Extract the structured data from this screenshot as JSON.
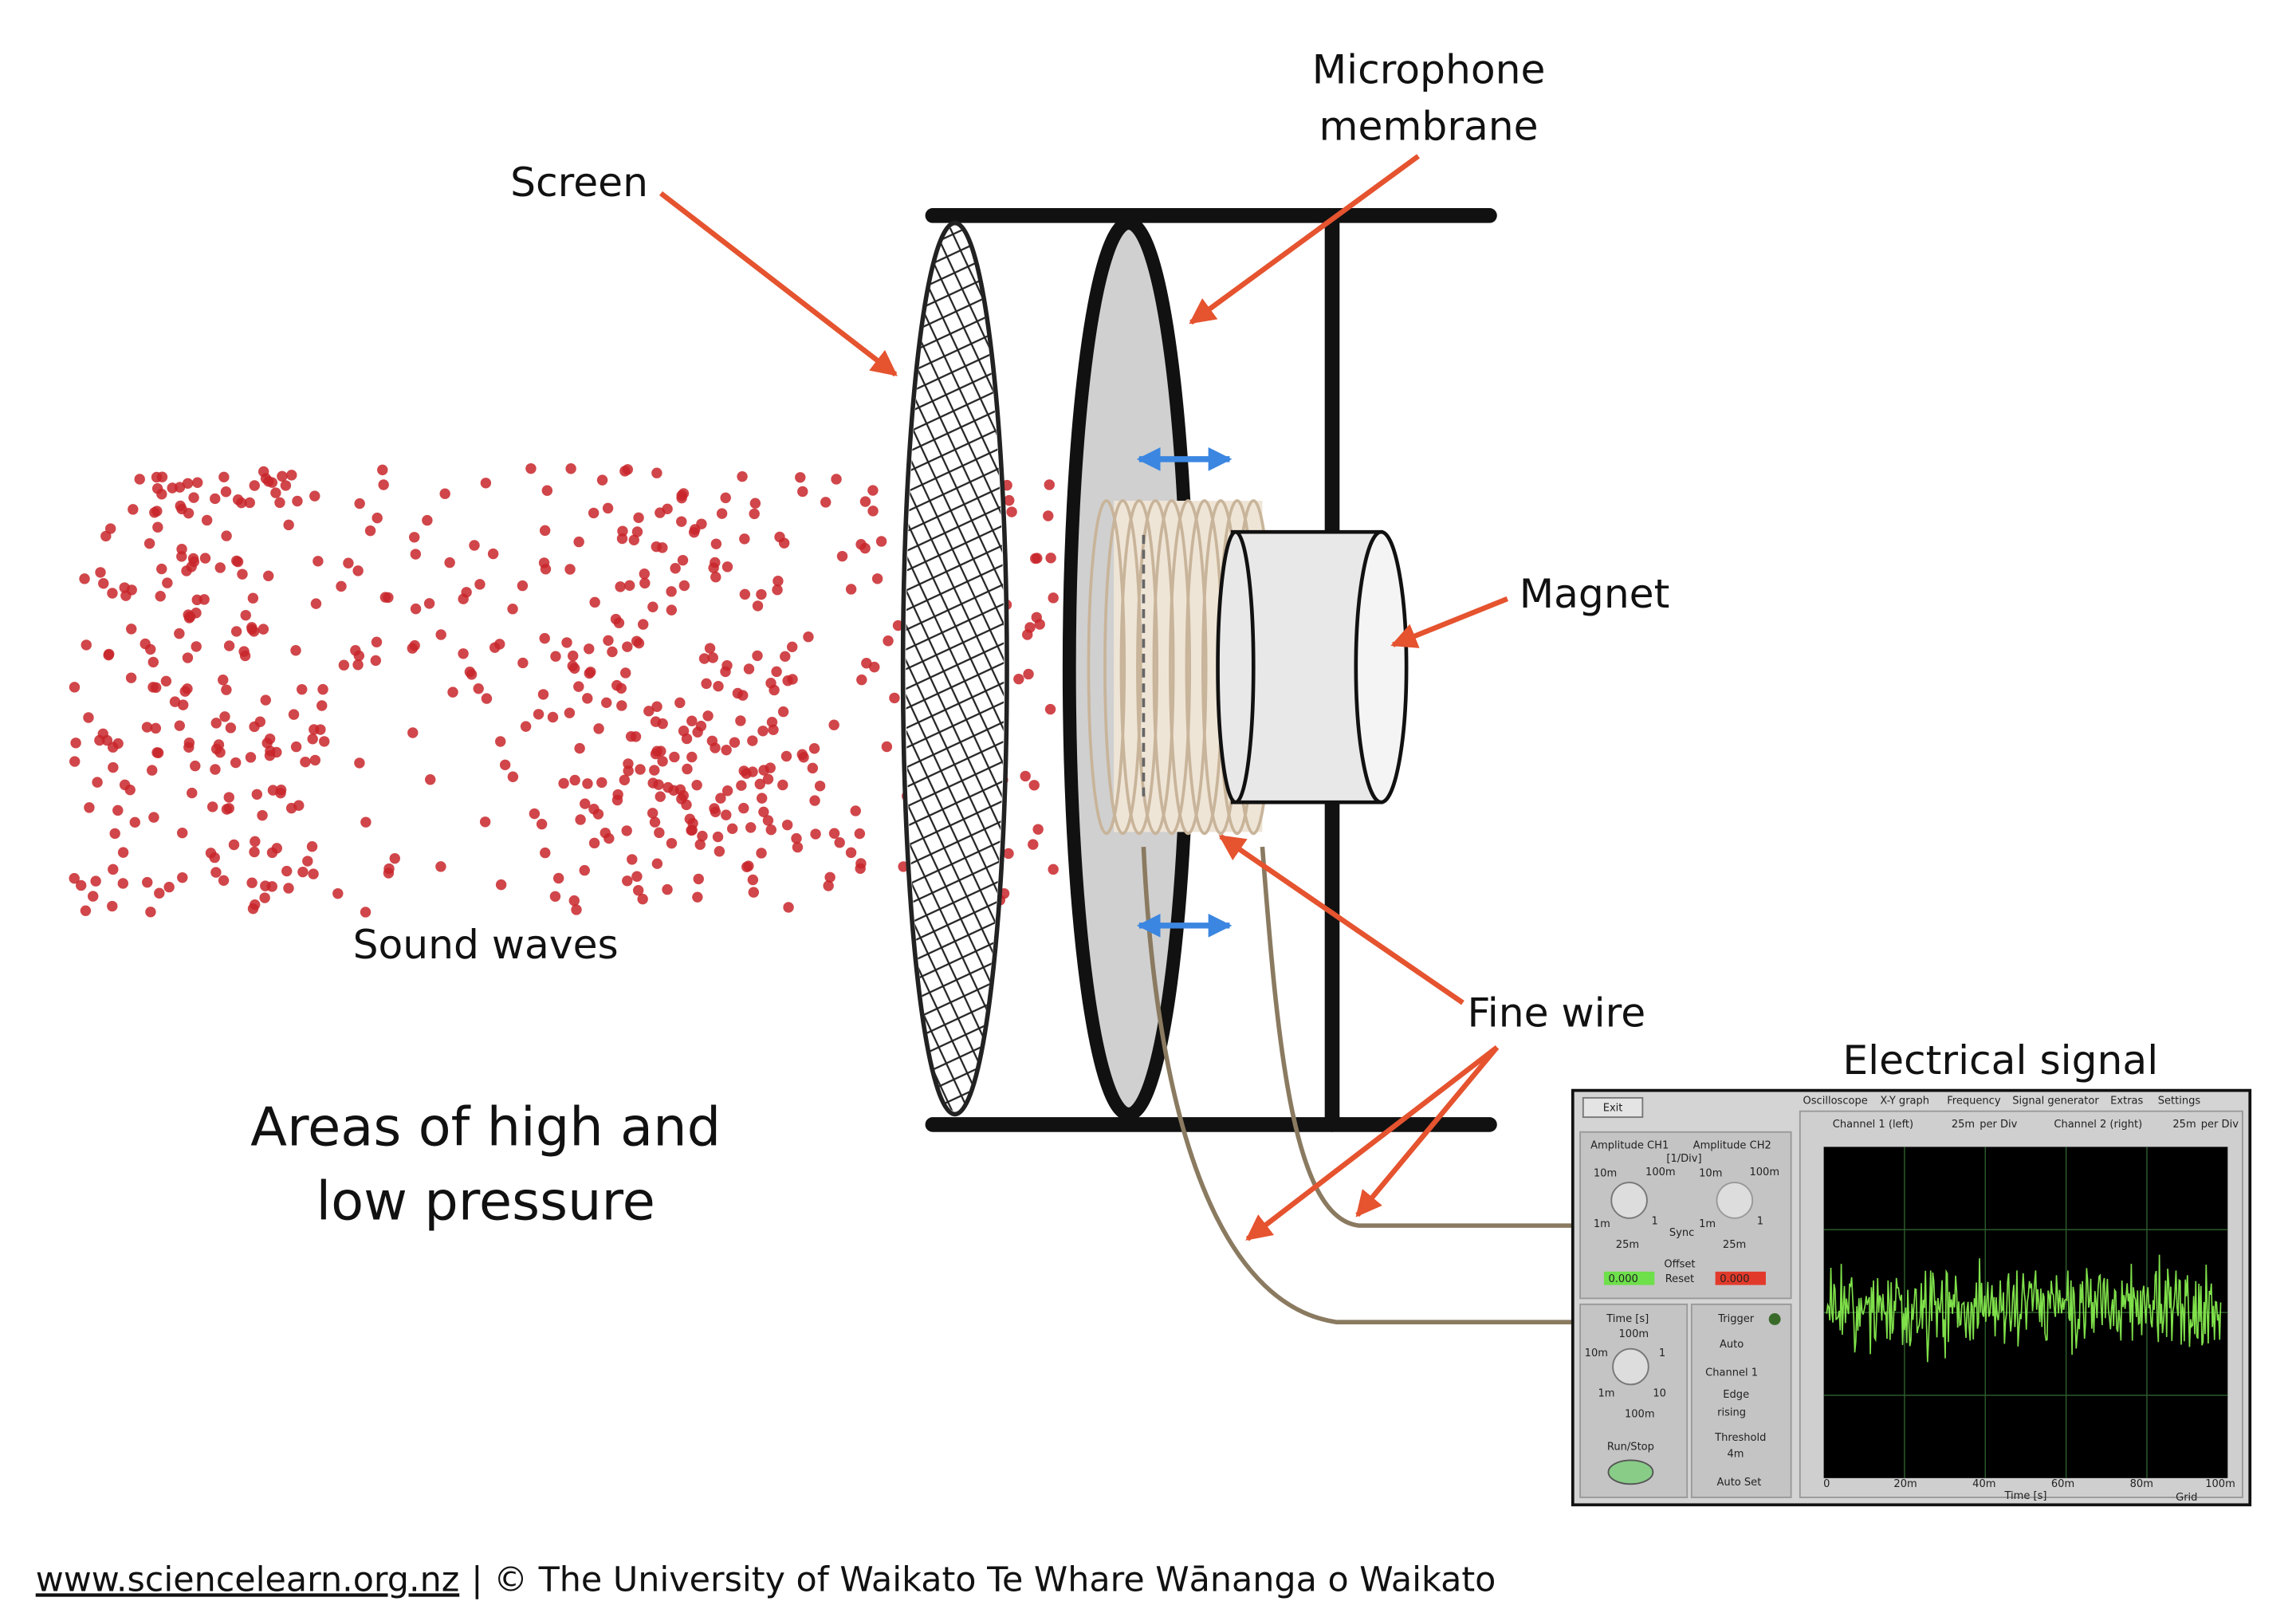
{
  "labels": {
    "microphone": "Microphone",
    "membrane": "membrane",
    "screen": "Screen",
    "magnet": "Magnet",
    "sound_waves": "Sound waves",
    "fine_wire": "Fine wire",
    "electrical_signal": "Electrical signal",
    "pressure_1": "Areas of high and",
    "pressure_2": "low pressure"
  },
  "footer": {
    "link": "www.sciencelearn.org.nz",
    "text": "| © The University of Waikato Te Whare Wānanga o Waikato"
  },
  "oscilloscope": {
    "exit": "Exit",
    "tabs": [
      "Oscilloscope",
      "X-Y graph",
      "Frequency",
      "Signal generator",
      "Extras",
      "Settings"
    ],
    "ch1": {
      "name": "Channel 1 (left)",
      "div": "25m",
      "per": "per Div"
    },
    "ch2": {
      "name": "Channel 2 (right)",
      "div": "25m",
      "per": "per Div"
    },
    "amplitude_ch1": "Amplitude CH1",
    "amplitude_ch2": "Amplitude CH2",
    "unit": "[1/Div]",
    "knob1": [
      "10m",
      "100m",
      "1m",
      "1"
    ],
    "knob1_value": "25m",
    "sync": "Sync",
    "knob2": [
      "10m",
      "100m",
      "1m",
      "1"
    ],
    "knob2_value": "25m",
    "offset": "Offset",
    "offset1": "0.000",
    "reset": "Reset",
    "offset2": "0.000",
    "time": "Time [s]",
    "time_knob": [
      "100m",
      "10m",
      "1",
      "1m",
      "10"
    ],
    "time_value": "100m",
    "run_stop": "Run/Stop",
    "trigger": "Trigger",
    "mode": "Auto",
    "source": "Channel 1",
    "edge": "Edge",
    "edge_value": "rising",
    "threshold": "Threshold",
    "threshold_value": "4m",
    "auto_set": "Auto Set",
    "xticks": [
      "0",
      "20m",
      "40m",
      "60m",
      "80m",
      "100m"
    ],
    "xlabel": "Time [s]",
    "grid": "Grid"
  }
}
